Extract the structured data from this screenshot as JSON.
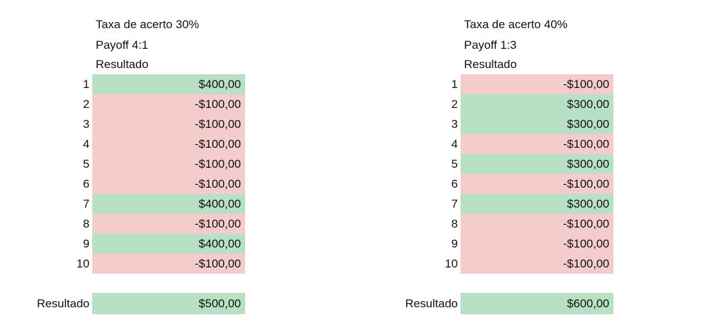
{
  "tables": [
    {
      "title": "Taxa de acerto 30%",
      "payoff": "Payoff 4:1",
      "column_label": "Resultado",
      "rows": [
        {
          "n": "1",
          "value": "$400,00",
          "status": "positive"
        },
        {
          "n": "2",
          "value": "-$100,00",
          "status": "negative"
        },
        {
          "n": "3",
          "value": "-$100,00",
          "status": "negative"
        },
        {
          "n": "4",
          "value": "-$100,00",
          "status": "negative"
        },
        {
          "n": "5",
          "value": "-$100,00",
          "status": "negative"
        },
        {
          "n": "6",
          "value": "-$100,00",
          "status": "negative"
        },
        {
          "n": "7",
          "value": "$400,00",
          "status": "positive"
        },
        {
          "n": "8",
          "value": "-$100,00",
          "status": "negative"
        },
        {
          "n": "9",
          "value": "$400,00",
          "status": "positive"
        },
        {
          "n": "10",
          "value": "-$100,00",
          "status": "negative"
        }
      ],
      "total_label": "Resultado",
      "total_value": "$500,00"
    },
    {
      "title": "Taxa de acerto 40%",
      "payoff": "Payoff 1:3",
      "column_label": "Resultado",
      "rows": [
        {
          "n": "1",
          "value": "-$100,00",
          "status": "negative"
        },
        {
          "n": "2",
          "value": "$300,00",
          "status": "positive"
        },
        {
          "n": "3",
          "value": "$300,00",
          "status": "positive"
        },
        {
          "n": "4",
          "value": "-$100,00",
          "status": "negative"
        },
        {
          "n": "5",
          "value": "$300,00",
          "status": "positive"
        },
        {
          "n": "6",
          "value": "-$100,00",
          "status": "negative"
        },
        {
          "n": "7",
          "value": "$300,00",
          "status": "positive"
        },
        {
          "n": "8",
          "value": "-$100,00",
          "status": "negative"
        },
        {
          "n": "9",
          "value": "-$100,00",
          "status": "negative"
        },
        {
          "n": "10",
          "value": "-$100,00",
          "status": "negative"
        }
      ],
      "total_label": "Resultado",
      "total_value": "$600,00"
    }
  ],
  "colors": {
    "positive": "#b8e0c5",
    "negative": "#f4cccc"
  }
}
